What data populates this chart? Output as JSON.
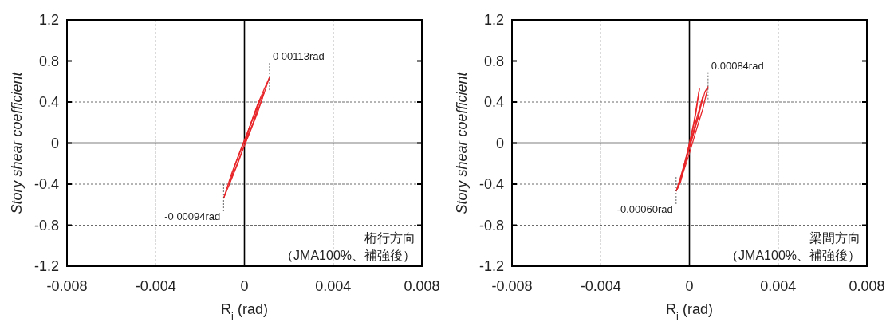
{
  "chart_data": [
    {
      "type": "line",
      "xlabel": "R$_{i}$ (rad)",
      "ylabel": "Story shear coefficient",
      "xlim": [
        -0.008,
        0.008
      ],
      "ylim": [
        -1.2,
        1.2
      ],
      "xticks": [
        -0.008,
        -0.004,
        0,
        0.004,
        0.008
      ],
      "yticks": [
        -1.2,
        -0.8,
        -0.4,
        0,
        0.4,
        0.8,
        1.2
      ],
      "grid": true,
      "marker": "none",
      "line_style": "solid",
      "series": [
        {
          "color": "#e8262a",
          "x": [
            0,
            0.0003,
            0.0006,
            0.0009,
            0.00113
          ],
          "values": [
            0,
            0.2,
            0.38,
            0.53,
            0.64
          ]
        },
        {
          "color": "#e8262a",
          "x": [
            0.00113,
            0.0008,
            0.0004,
            0,
            -0.0003,
            -0.0006,
            -0.00094
          ],
          "values": [
            0.64,
            0.43,
            0.2,
            -0.02,
            -0.2,
            -0.36,
            -0.54
          ]
        },
        {
          "color": "#e8262a",
          "x": [
            -0.00094,
            -0.0006,
            -0.0002,
            0.0002,
            0.0006,
            0.0009
          ],
          "values": [
            -0.54,
            -0.31,
            -0.08,
            0.14,
            0.37,
            0.5
          ]
        },
        {
          "color": "#e8262a",
          "x": [
            0.0009,
            0.0006,
            0.0002,
            -0.0002,
            -0.0005,
            -0.0007
          ],
          "values": [
            0.5,
            0.3,
            0.08,
            -0.13,
            -0.3,
            -0.41
          ]
        },
        {
          "color": "#e8262a",
          "x": [
            -0.0007,
            -0.0004,
            0,
            0.0004,
            0.0007
          ],
          "values": [
            -0.41,
            -0.2,
            0.02,
            0.25,
            0.42
          ]
        },
        {
          "color": "#e8262a",
          "x": [
            0.0007,
            0.0004,
            0
          ],
          "values": [
            0.42,
            0.2,
            0
          ]
        }
      ],
      "annotations": [
        {
          "text": "0 00113rad",
          "x": 0.00113,
          "y": 0.64
        },
        {
          "text": "-0 00094rad",
          "x": -0.00094,
          "y": -0.54
        },
        "桁行方向",
        "（JMA100%、補強後）"
      ]
    },
    {
      "type": "line",
      "xlabel": "R$_{i}$ (rad)",
      "ylabel": "Story shear coefficient",
      "xlim": [
        -0.008,
        0.008
      ],
      "ylim": [
        -1.2,
        1.2
      ],
      "xticks": [
        -0.008,
        -0.004,
        0,
        0.004,
        0.008
      ],
      "yticks": [
        -1.2,
        -0.8,
        -0.4,
        0,
        0.4,
        0.8,
        1.2
      ],
      "grid": true,
      "marker": "none",
      "line_style": "solid",
      "series": [
        {
          "color": "#e8262a",
          "x": [
            -0.0004,
            -0.0002,
            0,
            0.0002,
            0.00045
          ],
          "values": [
            -0.36,
            -0.2,
            0,
            0.2,
            0.53
          ]
        },
        {
          "color": "#e8262a",
          "x": [
            0.00045,
            0.0003,
            0.0001,
            -0.0002,
            -0.0004,
            -0.0006
          ],
          "values": [
            0.53,
            0.3,
            0.08,
            -0.18,
            -0.33,
            -0.47
          ]
        },
        {
          "color": "#e8262a",
          "x": [
            -0.0006,
            -0.0004,
            -0.0001,
            0.0002,
            0.0005,
            0.0007,
            0.00084
          ],
          "values": [
            -0.47,
            -0.38,
            -0.12,
            0.1,
            0.35,
            0.5,
            0.55
          ]
        },
        {
          "color": "#e8262a",
          "x": [
            0.00084,
            0.0006,
            0.0003,
            0,
            -0.0003,
            -0.00055
          ],
          "values": [
            0.55,
            0.33,
            0.12,
            -0.1,
            -0.3,
            -0.45
          ]
        },
        {
          "color": "#e8262a",
          "x": [
            -0.00055,
            -0.0003,
            0,
            0.0003,
            0.0006
          ],
          "values": [
            -0.45,
            -0.28,
            -0.04,
            0.22,
            0.45
          ]
        },
        {
          "color": "#e8262a",
          "x": [
            0.0006,
            0.0004,
            0.0001,
            -0.0002,
            -0.0004
          ],
          "values": [
            0.45,
            0.25,
            0.04,
            -0.18,
            -0.36
          ]
        }
      ],
      "annotations": [
        {
          "text": "0.00084rad",
          "x": 0.00084,
          "y": 0.55
        },
        {
          "text": "-0.00060rad",
          "x": -0.0006,
          "y": -0.47
        },
        "梁間方向",
        "（JMA100%、補強後）"
      ]
    }
  ]
}
